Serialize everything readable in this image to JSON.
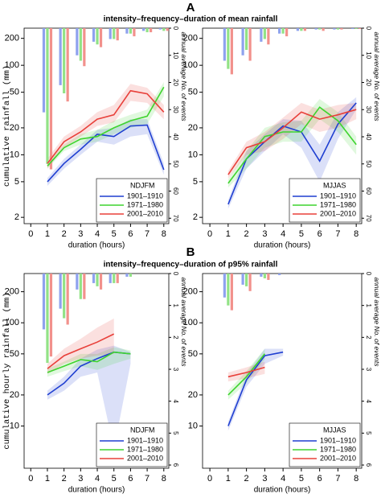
{
  "panels": [
    {
      "letter": "A",
      "title": "intensity–frequency–duration of mean rainfall"
    },
    {
      "letter": "B",
      "title": "intensity–frequency–duration of p95% rainfall"
    }
  ],
  "chart_data": [
    {
      "type": "line",
      "legend_title": "NDJFM",
      "ylabel": "cumulative rainfall (mm)",
      "xlabel": "duration (hours)",
      "y2label": "annual average No. of events",
      "legend": "lower right",
      "x": [
        1,
        2,
        3,
        4,
        5,
        6,
        7,
        8
      ],
      "xlim": [
        -0.4,
        8.3
      ],
      "xticks": [
        0,
        1,
        2,
        3,
        4,
        5,
        6,
        7,
        8
      ],
      "log_y": true,
      "ylim": [
        1.7,
        260
      ],
      "yticks": [
        2,
        5,
        10,
        20,
        50,
        100,
        200
      ],
      "y2lim": [
        0,
        72
      ],
      "y2ticks": [
        0,
        10,
        20,
        30,
        40,
        50,
        60,
        70
      ],
      "y2_inverted": true,
      "series": [
        {
          "name": "1901–1910",
          "color": "#1f3fd1",
          "bar_color": "#8ea2ee",
          "values": [
            5,
            8,
            11.5,
            17,
            16,
            21,
            21.5,
            6.8
          ],
          "lower": [
            4.5,
            7,
            10,
            14,
            13,
            16,
            17,
            6
          ],
          "upper": [
            5.5,
            9,
            13,
            19,
            20,
            25,
            25,
            8
          ],
          "events": [
            31,
            21,
            10,
            5,
            4,
            2,
            1,
            0.5
          ]
        },
        {
          "name": "1971–1980",
          "color": "#3fd42f",
          "bar_color": "#92e286",
          "values": [
            7.5,
            12,
            15,
            16,
            20,
            24,
            27,
            57
          ],
          "lower": [
            7,
            11,
            13,
            14,
            17,
            20,
            22,
            45
          ],
          "upper": [
            8,
            13,
            17,
            19,
            24,
            28,
            32,
            65
          ],
          "events": [
            50,
            24,
            12,
            6,
            4,
            2,
            1.5,
            1
          ]
        },
        {
          "name": "2001–2010",
          "color": "#e8403a",
          "bar_color": "#f2918c",
          "values": [
            8,
            14,
            18,
            25,
            28,
            52,
            48,
            30
          ],
          "lower": [
            7,
            12,
            16,
            21,
            23,
            40,
            38,
            25
          ],
          "upper": [
            9,
            16,
            21,
            30,
            36,
            62,
            56,
            36
          ],
          "events": [
            52,
            27,
            14,
            7,
            4.5,
            3,
            1.5,
            1
          ]
        }
      ]
    },
    {
      "type": "line",
      "legend_title": "MJJAS",
      "xlabel": "duration (hours)",
      "y2label": "annual average No. of events",
      "legend": "lower right",
      "x": [
        1,
        2,
        3,
        4,
        5,
        6,
        7,
        8
      ],
      "xlim": [
        -0.4,
        8.3
      ],
      "xticks": [
        0,
        1,
        2,
        3,
        4,
        5,
        6,
        7,
        8
      ],
      "log_y": true,
      "ylim": [
        1.7,
        260
      ],
      "yticks": [
        2,
        5,
        10,
        20,
        50,
        100,
        200
      ],
      "y2lim": [
        0,
        72
      ],
      "y2ticks": [
        0,
        10,
        20,
        30,
        40,
        50,
        60,
        70
      ],
      "y2_inverted": true,
      "series": [
        {
          "name": "1901–1910",
          "color": "#1f3fd1",
          "bar_color": "#8ea2ee",
          "values": [
            2.8,
            9,
            14,
            21,
            18,
            8.5,
            22,
            38
          ],
          "lower": [
            2.5,
            7,
            11,
            17,
            12,
            5,
            15,
            32
          ],
          "upper": [
            3.1,
            11,
            17,
            25,
            24,
            13,
            30,
            44
          ],
          "events": [
            12,
            10,
            5,
            2,
            1,
            0.5,
            0.5,
            0.3
          ]
        },
        {
          "name": "1971–1980",
          "color": "#3fd42f",
          "bar_color": "#92e286",
          "values": [
            4.8,
            9,
            16,
            18,
            18,
            34,
            24,
            13
          ],
          "lower": [
            4.3,
            7,
            12,
            14,
            14,
            25,
            18,
            10
          ],
          "upper": [
            5.3,
            11,
            20,
            23,
            24,
            42,
            30,
            16
          ],
          "events": [
            15,
            8,
            4,
            2,
            1,
            0.5,
            0.5,
            0.3
          ]
        },
        {
          "name": "2001–2010",
          "color": "#e8403a",
          "bar_color": "#f2918c",
          "values": [
            6,
            12,
            14,
            20,
            30,
            25,
            28,
            32
          ],
          "lower": [
            5.4,
            10,
            11,
            15,
            22,
            18,
            20,
            25
          ],
          "upper": [
            6.6,
            14,
            18,
            26,
            38,
            32,
            36,
            38
          ],
          "events": [
            17,
            12,
            6,
            3,
            1,
            1,
            0.5,
            0.3
          ]
        }
      ]
    },
    {
      "type": "line",
      "legend_title": "NDJFM",
      "ylabel": "cumulative hourly rainfall (mm)",
      "xlabel": "duration (hours)",
      "y2label": "annual average No. of events",
      "legend": "lower right",
      "x": [
        1,
        2,
        3,
        4,
        5,
        6,
        7,
        8
      ],
      "xlim": [
        -0.4,
        8.3
      ],
      "xticks": [
        0,
        1,
        2,
        3,
        4,
        5,
        6,
        7,
        8
      ],
      "log_y": true,
      "ylim": [
        3.9,
        300
      ],
      "yticks": [
        10,
        20,
        50,
        100,
        200
      ],
      "y2lim": [
        0,
        6.1
      ],
      "y2ticks": [
        0,
        1,
        2,
        3,
        4,
        5,
        6
      ],
      "y2_inverted": true,
      "series": [
        {
          "name": "1901–1910",
          "color": "#1f3fd1",
          "bar_color": "#8ea2ee",
          "values": [
            20,
            26,
            38,
            45,
            52,
            50,
            null,
            null
          ],
          "lower": [
            18,
            22,
            30,
            33,
            6,
            40,
            null,
            null
          ],
          "upper": [
            22,
            30,
            45,
            55,
            60,
            52,
            null,
            null
          ],
          "events": [
            1.75,
            1.1,
            0.5,
            0.3,
            0.3,
            0.1,
            null,
            null
          ]
        },
        {
          "name": "1971–1980",
          "color": "#3fd42f",
          "bar_color": "#92e286",
          "values": [
            33,
            38,
            44,
            42,
            52,
            50,
            null,
            null
          ],
          "lower": [
            30,
            34,
            38,
            35,
            40,
            45,
            null,
            null
          ],
          "upper": [
            36,
            42,
            50,
            50,
            58,
            54,
            null,
            null
          ],
          "events": [
            2.8,
            1.4,
            0.8,
            0.4,
            0.3,
            0.1,
            null,
            null
          ]
        },
        {
          "name": "2001–2010",
          "color": "#e8403a",
          "bar_color": "#f2918c",
          "values": [
            36,
            48,
            56,
            65,
            78,
            null,
            null,
            null
          ],
          "lower": [
            32,
            40,
            45,
            48,
            50,
            null,
            null,
            null
          ],
          "upper": [
            40,
            56,
            70,
            90,
            110,
            null,
            null,
            null
          ],
          "events": [
            2.6,
            1.6,
            0.8,
            0.5,
            0.3,
            null,
            null,
            null
          ]
        }
      ]
    },
    {
      "type": "line",
      "legend_title": "MJJAS",
      "xlabel": "duration (hours)",
      "y2label": "annual average No. of events",
      "legend": "lower right",
      "x": [
        1,
        2,
        3,
        4,
        5,
        6,
        7,
        8
      ],
      "xlim": [
        -0.4,
        8.3
      ],
      "xticks": [
        0,
        1,
        2,
        3,
        4,
        5,
        6,
        7,
        8
      ],
      "log_y": true,
      "ylim": [
        3.9,
        300
      ],
      "yticks": [
        10,
        20,
        50,
        100,
        200
      ],
      "y2lim": [
        0,
        6.1
      ],
      "y2ticks": [
        0,
        1,
        2,
        3,
        4,
        5,
        6
      ],
      "y2_inverted": true,
      "series": [
        {
          "name": "1901–1910",
          "color": "#1f3fd1",
          "bar_color": "#8ea2ee",
          "values": [
            10,
            28,
            48,
            52,
            null,
            null,
            null,
            null
          ],
          "lower": [
            9,
            24,
            40,
            48,
            null,
            null,
            null,
            null
          ],
          "upper": [
            11,
            32,
            56,
            56,
            null,
            null,
            null,
            null
          ],
          "events": [
            0.75,
            0.35,
            0.1,
            0.05,
            null,
            null,
            null,
            null
          ]
        },
        {
          "name": "1971–1980",
          "color": "#3fd42f",
          "bar_color": "#92e286",
          "values": [
            20,
            30,
            50,
            null,
            null,
            null,
            null,
            null
          ],
          "lower": [
            18,
            26,
            44,
            null,
            null,
            null,
            null,
            null
          ],
          "upper": [
            22,
            34,
            56,
            null,
            null,
            null,
            null,
            null
          ],
          "events": [
            1.0,
            0.4,
            0.15,
            null,
            null,
            null,
            null,
            null
          ]
        },
        {
          "name": "2001–2010",
          "color": "#e8403a",
          "bar_color": "#f2918c",
          "values": [
            30,
            33,
            37,
            null,
            null,
            null,
            null,
            null
          ],
          "lower": [
            27,
            29,
            32,
            null,
            null,
            null,
            null,
            null
          ],
          "upper": [
            33,
            37,
            42,
            null,
            null,
            null,
            null,
            null
          ],
          "events": [
            1.15,
            0.55,
            0.2,
            null,
            null,
            null,
            null,
            null
          ]
        }
      ]
    }
  ]
}
